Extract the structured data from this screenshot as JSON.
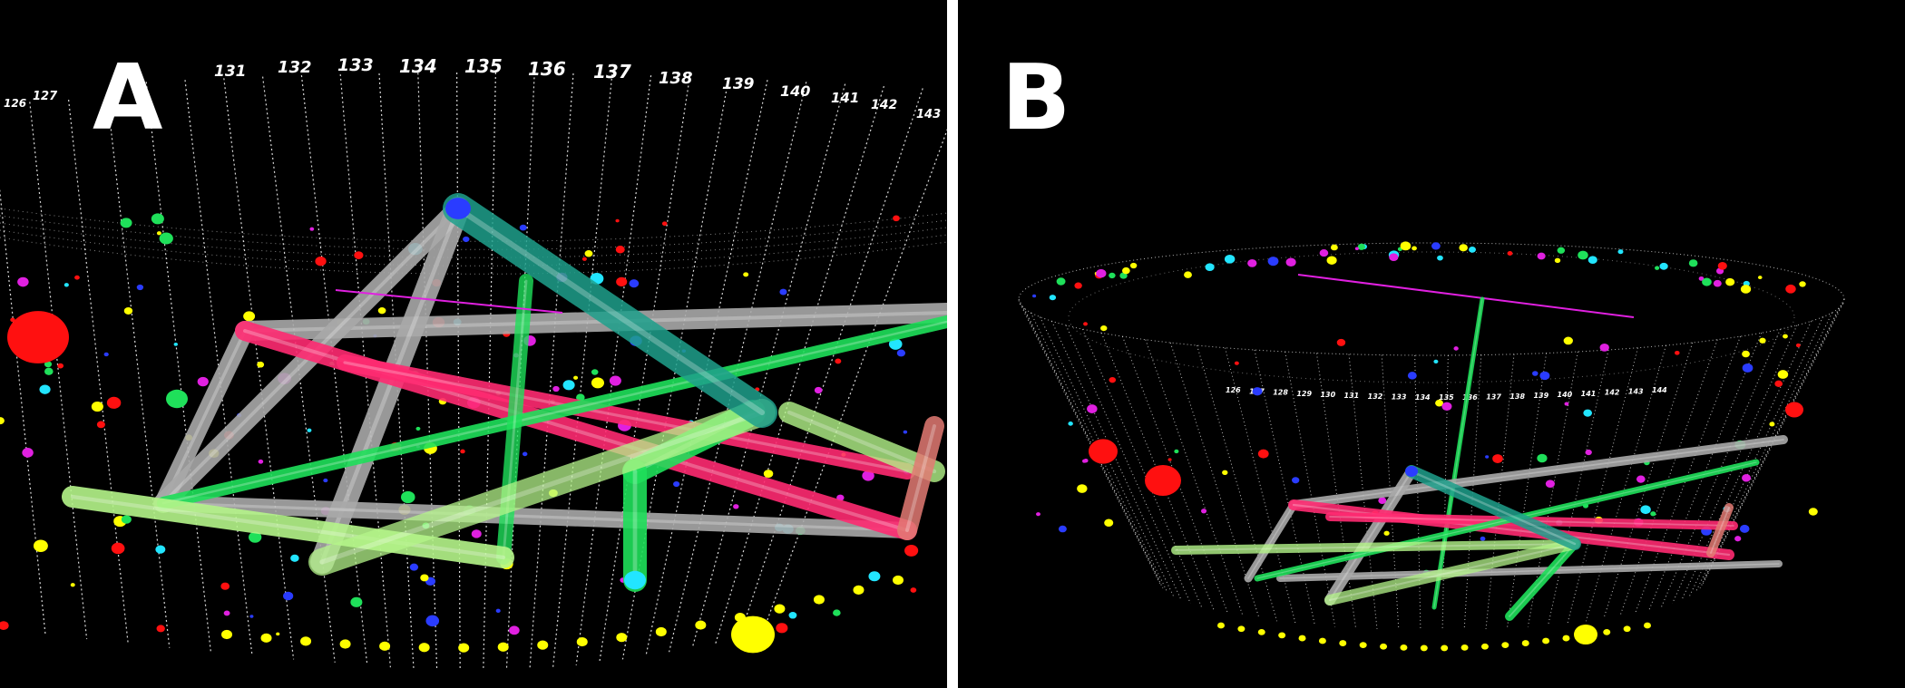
{
  "panels": [
    {
      "label": "A",
      "residue_ticks": [
        "126",
        "127",
        "131",
        "132",
        "133",
        "134",
        "135",
        "136",
        "137",
        "138",
        "139",
        "140",
        "141",
        "142",
        "143"
      ]
    },
    {
      "label": "B",
      "residue_ticks": [
        "126",
        "127",
        "128",
        "129",
        "130",
        "131",
        "132",
        "133",
        "134",
        "135",
        "136",
        "137",
        "138",
        "139",
        "140",
        "141",
        "142",
        "143",
        "144"
      ]
    }
  ],
  "colors": {
    "gray_tube": "#a9a9a9",
    "pink_tube": "#ff2b72",
    "green_tube": "#1fe05a",
    "lime_tube": "#b5f58a",
    "teal_tube": "#1fa08c",
    "node_yellow": "#ffff00",
    "node_red": "#ff1010",
    "node_blue": "#2a3cff",
    "node_cyan": "#22e5ff",
    "node_magenta": "#e020e0"
  }
}
